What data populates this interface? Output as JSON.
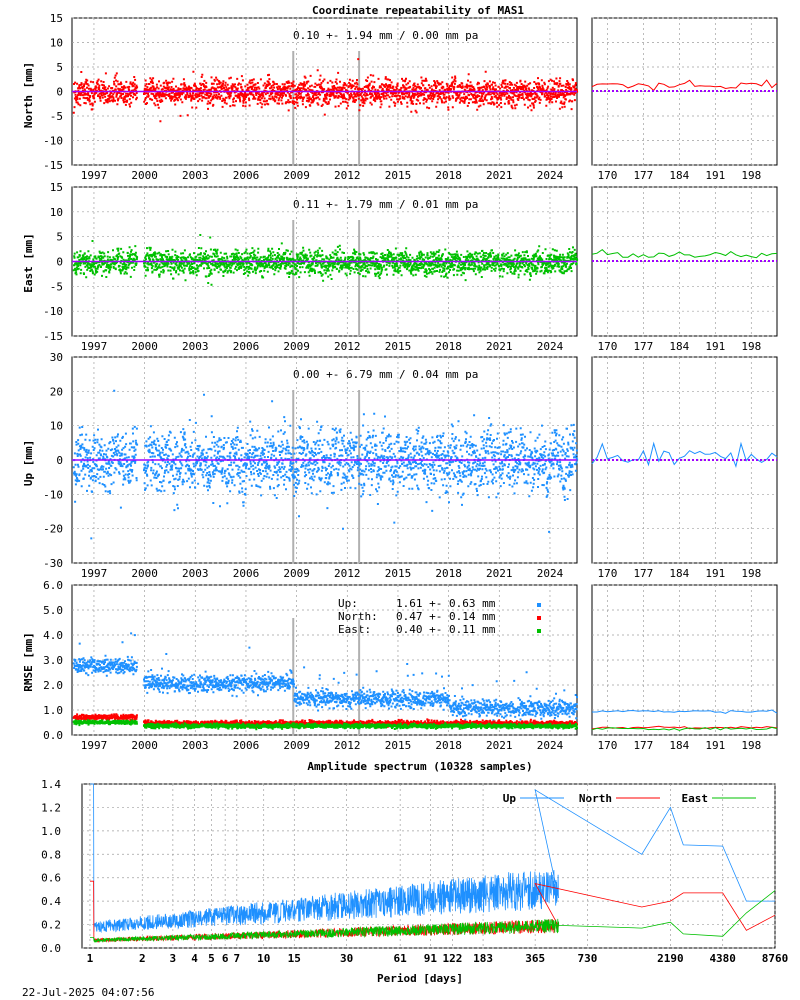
{
  "page": {
    "title": "Coordinate repeatability of MAS1",
    "timestamp": "22-Jul-2025 04:07:56"
  },
  "colors": {
    "north": "#ff0000",
    "east": "#00c000",
    "up": "#1e90ff",
    "trend": "#a000ff",
    "event": "#b0b0b0",
    "grid": "#a0a0a0"
  },
  "chart_data": [
    {
      "type": "scatter",
      "title": "Coordinate repeatability of MAS1",
      "ylabel": "North [mm]",
      "annotation": "0.10 +- 1.94 mm /  0.00 mm pa",
      "ylim": [
        -15,
        15
      ],
      "yticks": [
        -15,
        -10,
        -5,
        0,
        5,
        10,
        15
      ],
      "xlim": [
        1995.7,
        2025.6
      ],
      "xticks": [
        "1997",
        "2000",
        "2003",
        "2006",
        "2009",
        "2012",
        "2015",
        "2018",
        "2021",
        "2024"
      ],
      "xtick_values": [
        1997,
        2000,
        2003,
        2006,
        2009,
        2012,
        2015,
        2018,
        2021,
        2024
      ],
      "zoom_xlim": [
        167,
        203
      ],
      "zoom_xticks": [
        "170",
        "177",
        "184",
        "191",
        "198"
      ],
      "zoom_xtick_values": [
        170,
        177,
        184,
        191,
        198
      ],
      "series": [
        {
          "mean": 0.1,
          "sd": 1.94,
          "trend_pa": 0.0
        }
      ],
      "grid": true
    },
    {
      "type": "scatter",
      "ylabel": "East [mm]",
      "annotation": "0.11 +- 1.79 mm /  0.01 mm pa",
      "ylim": [
        -15,
        15
      ],
      "yticks": [
        -15,
        -10,
        -5,
        0,
        5,
        10,
        15
      ],
      "xlim": [
        1995.7,
        2025.6
      ],
      "xticks": [
        "1997",
        "2000",
        "2003",
        "2006",
        "2009",
        "2012",
        "2015",
        "2018",
        "2021",
        "2024"
      ],
      "xtick_values": [
        1997,
        2000,
        2003,
        2006,
        2009,
        2012,
        2015,
        2018,
        2021,
        2024
      ],
      "zoom_xlim": [
        167,
        203
      ],
      "zoom_xticks": [
        "170",
        "177",
        "184",
        "191",
        "198"
      ],
      "zoom_xtick_values": [
        170,
        177,
        184,
        191,
        198
      ],
      "series": [
        {
          "mean": 0.11,
          "sd": 1.79,
          "trend_pa": 0.01
        }
      ],
      "grid": true
    },
    {
      "type": "scatter",
      "ylabel": "Up [mm]",
      "annotation": "0.00 +- 6.79 mm /  0.04 mm pa",
      "ylim": [
        -30,
        30
      ],
      "yticks": [
        -30,
        -20,
        -10,
        0,
        10,
        20,
        30
      ],
      "xlim": [
        1995.7,
        2025.6
      ],
      "xticks": [
        "1997",
        "2000",
        "2003",
        "2006",
        "2009",
        "2012",
        "2015",
        "2018",
        "2021",
        "2024"
      ],
      "xtick_values": [
        1997,
        2000,
        2003,
        2006,
        2009,
        2012,
        2015,
        2018,
        2021,
        2024
      ],
      "zoom_xlim": [
        167,
        203
      ],
      "zoom_xticks": [
        "170",
        "177",
        "184",
        "191",
        "198"
      ],
      "zoom_xtick_values": [
        170,
        177,
        184,
        191,
        198
      ],
      "series": [
        {
          "mean": 0.0,
          "sd": 6.79,
          "trend_pa": 0.04
        }
      ],
      "grid": true
    },
    {
      "type": "scatter",
      "ylabel": "RMSE [mm]",
      "ylim": [
        0,
        6
      ],
      "yticks": [
        "0.0",
        "1.0",
        "2.0",
        "3.0",
        "4.0",
        "5.0",
        "6.0"
      ],
      "ytick_values": [
        0,
        1,
        2,
        3,
        4,
        5,
        6
      ],
      "xlim": [
        1995.7,
        2025.6
      ],
      "xticks": [
        "1997",
        "2000",
        "2003",
        "2006",
        "2009",
        "2012",
        "2015",
        "2018",
        "2021",
        "2024"
      ],
      "xtick_values": [
        1997,
        2000,
        2003,
        2006,
        2009,
        2012,
        2015,
        2018,
        2021,
        2024
      ],
      "zoom_xlim": [
        167,
        203
      ],
      "zoom_xticks": [
        "170",
        "177",
        "184",
        "191",
        "198"
      ],
      "zoom_xtick_values": [
        170,
        177,
        184,
        191,
        198
      ],
      "legend": [
        {
          "name": "Up:",
          "value": "1.61 +- 0.63 mm"
        },
        {
          "name": "North:",
          "value": "0.47 +- 0.14 mm"
        },
        {
          "name": "East:",
          "value": "0.40 +- 0.11 mm"
        }
      ],
      "grid": true
    },
    {
      "type": "line",
      "title": "Amplitude spectrum (10328 samples)",
      "xlabel": "Period [days]",
      "ylim": [
        0,
        1.4
      ],
      "yticks": [
        "0.0",
        "0.2",
        "0.4",
        "0.6",
        "0.8",
        "1.0",
        "1.2",
        "1.4"
      ],
      "ytick_values": [
        0,
        0.2,
        0.4,
        0.6,
        0.8,
        1.0,
        1.2,
        1.4
      ],
      "x_scale": "log",
      "xlim": [
        0.9,
        8760
      ],
      "xticks": [
        "1",
        "2",
        "3",
        "4",
        "5",
        "6",
        "7",
        "10",
        "15",
        "30",
        "61",
        "91",
        "122",
        "183",
        "365",
        "730",
        "2190",
        "4380",
        "8760"
      ],
      "xtick_values": [
        1,
        2,
        3,
        4,
        5,
        6,
        7,
        10,
        15,
        30,
        61,
        91,
        122,
        183,
        365,
        730,
        2190,
        4380,
        8760
      ],
      "series": [
        {
          "name": "Up",
          "x": [
            1,
            365,
            1500,
            2190,
            2600,
            4380,
            6000,
            8760
          ],
          "values": [
            1.4,
            1.35,
            0.8,
            1.2,
            0.88,
            0.87,
            0.4,
            0.4
          ]
        },
        {
          "name": "North",
          "x": [
            1,
            365,
            1500,
            2190,
            2600,
            4380,
            6000,
            8760
          ],
          "values": [
            0.57,
            0.55,
            0.35,
            0.4,
            0.47,
            0.47,
            0.15,
            0.28
          ]
        },
        {
          "name": "East",
          "x": [
            1,
            365,
            1500,
            2190,
            2600,
            4380,
            6000,
            8760
          ],
          "values": [
            0.09,
            0.2,
            0.17,
            0.22,
            0.12,
            0.1,
            0.3,
            0.49
          ]
        }
      ],
      "legend_position": "top-right",
      "grid": true
    }
  ]
}
